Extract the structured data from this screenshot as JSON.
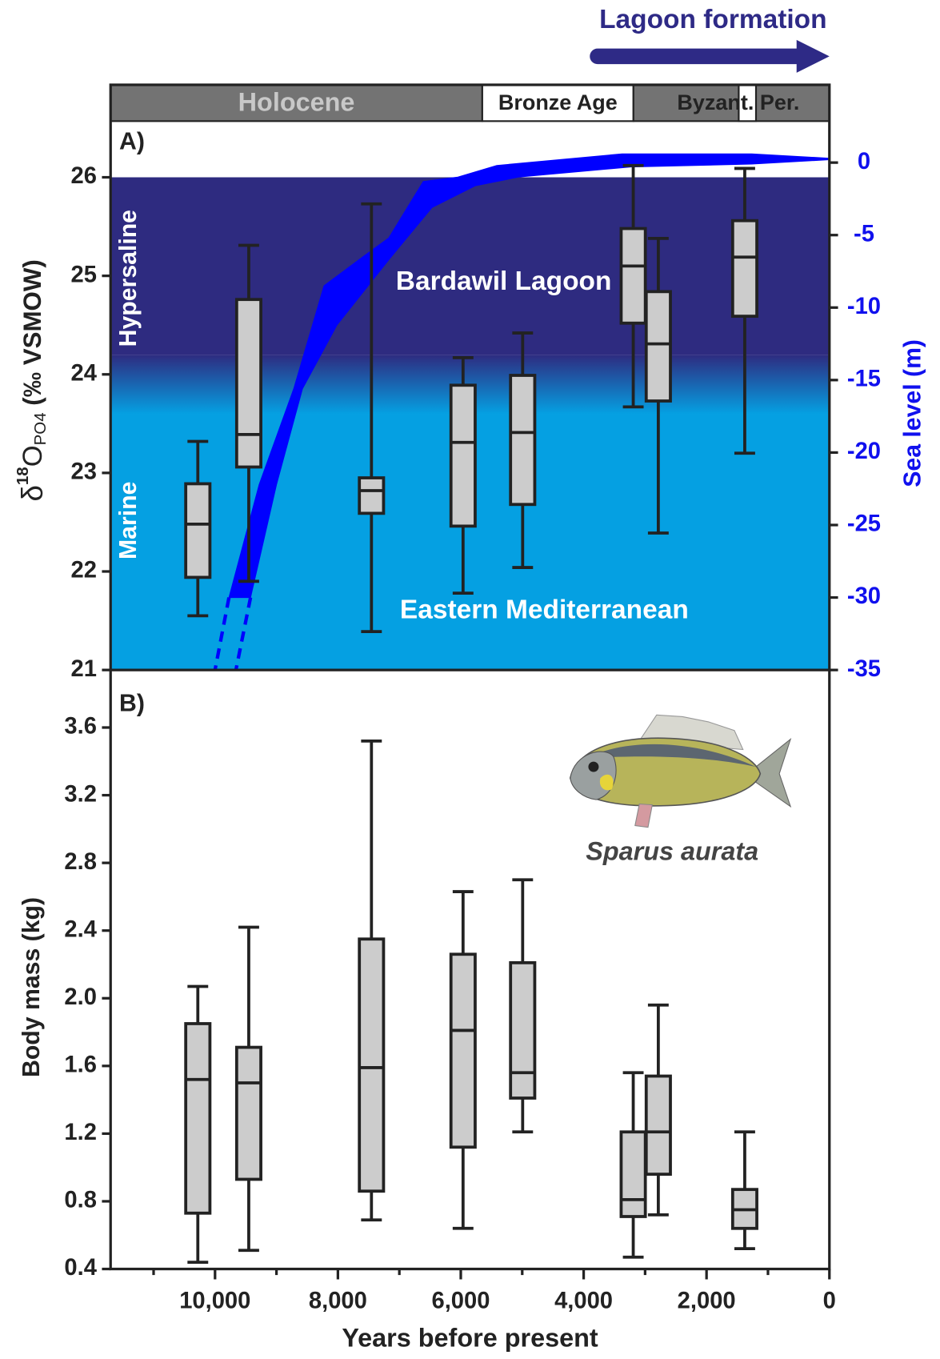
{
  "chart_data": [
    {
      "type": "box",
      "label": "A)",
      "y_label": {
        "prefix": "δ",
        "sup": "18",
        "main": "O",
        "sub": "PO4",
        "suffix": " (‰ VSMOW)"
      },
      "y2_label": "Sea level (m)",
      "y2_color": "#1010ee",
      "xlim": [
        11700,
        0
      ],
      "ylim": [
        21,
        26.57
      ],
      "yticks": [
        21,
        22,
        23,
        24,
        25,
        26
      ],
      "y2lim": [
        -35,
        2.86
      ],
      "y2ticks": [
        0,
        -5,
        -10,
        -15,
        -20,
        -25,
        -30,
        -35
      ],
      "periods": [
        {
          "label": "Holocene",
          "from": 11700,
          "to": 5650,
          "color": "#737373",
          "text_color": "#c8c8c8"
        },
        {
          "label": "Bronze Age",
          "from": 5650,
          "to": 3190,
          "color": "#ffffff",
          "text_color": "#222222"
        },
        {
          "label": "Byzant. Per.",
          "from": 3190,
          "to": 0,
          "color": "#737373",
          "text_color": "#222222"
        },
        {
          "from": 1476,
          "to": 1195,
          "color": "#ffffff"
        }
      ],
      "lagoon_formation": {
        "label": "Lagoon formation",
        "x": [
          3900,
          0
        ],
        "color": "#2e2a86"
      },
      "zones": [
        {
          "label": "Hypersaline",
          "from": 24.2,
          "to": 26,
          "color": "#2e2b80"
        },
        {
          "label": "Marine",
          "from": 21,
          "to": 23.6,
          "color": "#05a0e2"
        }
      ],
      "annotations": [
        "Bardawil Lagoon",
        "Eastern Mediterranean"
      ],
      "box_color": "#cccccc",
      "x": [
        10280,
        9451,
        7454,
        5963,
        4993,
        3193,
        2785,
        1378
      ],
      "whisker_low": [
        21.55,
        21.9,
        21.39,
        21.78,
        22.04,
        23.67,
        22.39,
        23.2
      ],
      "q1": [
        21.94,
        23.06,
        22.59,
        22.46,
        22.68,
        24.52,
        23.73,
        24.59
      ],
      "median": [
        22.48,
        23.39,
        22.82,
        23.31,
        23.41,
        25.1,
        24.31,
        25.19
      ],
      "q3": [
        22.89,
        24.76,
        22.95,
        23.89,
        23.99,
        25.48,
        24.84,
        25.56
      ],
      "whisker_high": [
        23.32,
        25.31,
        25.73,
        24.17,
        24.42,
        26.12,
        25.38,
        26.09
      ],
      "sea_level": {
        "axis": "y2",
        "color": "#0000ff",
        "upper": {
          "x": [
            9773,
            9281,
            8719,
            8226,
            7594,
            7172,
            6610,
            6047,
            5414,
            3375,
            1265,
            0
          ],
          "values": [
            -30,
            -22.2,
            -15.6,
            -8.5,
            -6.5,
            -5.2,
            -1.3,
            -1.0,
            -0.2,
            0.6,
            0.6,
            0.3
          ]
        },
        "lower": {
          "x": [
            9422,
            8999,
            8577,
            8015,
            7172,
            6469,
            5766,
            5062,
            3234,
            1265,
            0
          ],
          "values": [
            -30,
            -22.2,
            -15.6,
            -11.2,
            -6.7,
            -3.1,
            -1.6,
            -1.0,
            -0.3,
            -0.1,
            0.2
          ]
        },
        "projection": [
          {
            "x": [
              9773,
              10000
            ],
            "values": [
              -30,
              -35
            ]
          },
          {
            "x": [
              9422,
              9660
            ],
            "values": [
              -30,
              -35
            ]
          }
        ]
      }
    },
    {
      "type": "box",
      "label": "B)",
      "y_label": "Body mass (kg)",
      "x_label": "Years before present",
      "species": "Sparus aurata",
      "xlim": [
        11700,
        0
      ],
      "ylim": [
        0.4,
        3.94
      ],
      "yticks": [
        0.4,
        0.8,
        1.2,
        1.6,
        {
          "value": 2,
          "label": "2.0"
        },
        2.4,
        2.8,
        3.2,
        3.6
      ],
      "xticks": [
        {
          "value": 10000,
          "label": "10,000"
        },
        {
          "value": 8000,
          "label": "8,000"
        },
        {
          "value": 6000,
          "label": "6,000"
        },
        {
          "value": 4000,
          "label": "4,000"
        },
        {
          "value": 2000,
          "label": "2,000"
        },
        0
      ],
      "xminor": [
        11000,
        9000,
        7000,
        5000,
        3000,
        1000
      ],
      "box_color": "#cccccc",
      "x": [
        10280,
        9451,
        7454,
        5963,
        4993,
        3193,
        2785,
        1378
      ],
      "whisker_low": [
        0.44,
        0.51,
        0.69,
        0.64,
        1.21,
        0.47,
        0.72,
        0.52
      ],
      "q1": [
        0.73,
        0.93,
        0.86,
        1.12,
        1.41,
        0.71,
        0.96,
        0.64
      ],
      "median": [
        1.52,
        1.5,
        1.59,
        1.81,
        1.56,
        0.81,
        1.21,
        0.75
      ],
      "q3": [
        1.85,
        1.71,
        2.35,
        2.26,
        2.21,
        1.21,
        1.54,
        0.87
      ],
      "whisker_high": [
        2.07,
        2.42,
        3.52,
        2.63,
        2.7,
        1.56,
        1.96,
        1.21
      ]
    }
  ]
}
